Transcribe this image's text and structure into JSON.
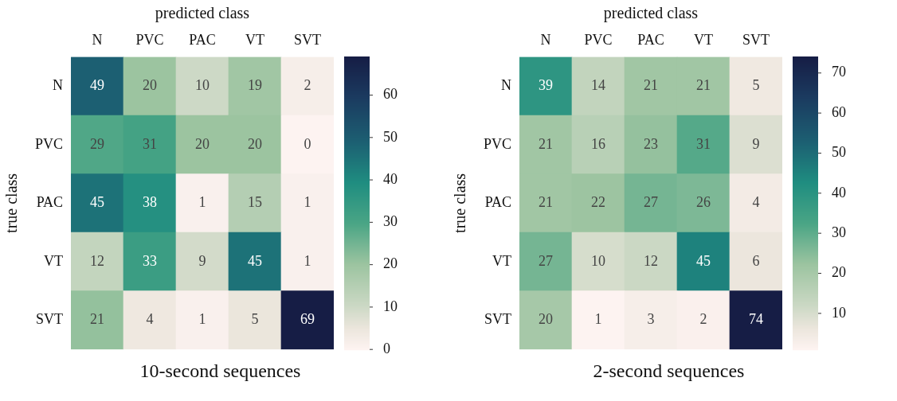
{
  "chart_data": [
    {
      "type": "heatmap",
      "title": "10-second sequences",
      "xlabel": "predicted class",
      "ylabel": "true class",
      "categories": [
        "N",
        "PVC",
        "PAC",
        "VT",
        "SVT"
      ],
      "y_categories": [
        "N",
        "PVC",
        "PAC",
        "VT",
        "SVT"
      ],
      "cells": [
        [
          49,
          20,
          10,
          19,
          2
        ],
        [
          29,
          31,
          20,
          20,
          0
        ],
        [
          45,
          38,
          1,
          15,
          1
        ],
        [
          12,
          33,
          9,
          45,
          1
        ],
        [
          21,
          4,
          1,
          5,
          69
        ]
      ],
      "data_labels": true,
      "clim": [
        0,
        69
      ],
      "cticks": [
        0,
        10,
        20,
        30,
        40,
        50,
        60
      ]
    },
    {
      "type": "heatmap",
      "title": "2-second sequences",
      "xlabel": "predicted class",
      "ylabel": "true class",
      "categories": [
        "N",
        "PVC",
        "PAC",
        "VT",
        "SVT"
      ],
      "y_categories": [
        "N",
        "PVC",
        "PAC",
        "VT",
        "SVT"
      ],
      "cells": [
        [
          39,
          14,
          21,
          21,
          5
        ],
        [
          21,
          16,
          23,
          31,
          9
        ],
        [
          21,
          22,
          27,
          26,
          4
        ],
        [
          27,
          10,
          12,
          45,
          6
        ],
        [
          20,
          1,
          3,
          2,
          74
        ]
      ],
      "data_labels": true,
      "clim": [
        1,
        74
      ],
      "cticks": [
        10,
        20,
        30,
        40,
        50,
        60,
        70
      ]
    }
  ]
}
